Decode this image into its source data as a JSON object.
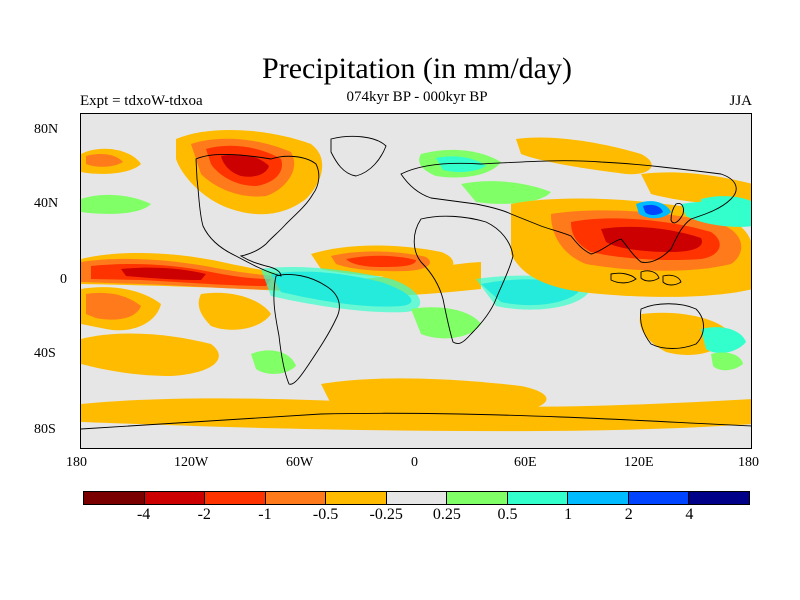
{
  "title": "Precipitation (in mm/day)",
  "subtitle": "074kyr BP - 000kyr BP",
  "left_label": "Expt = tdxoW-tdxoa",
  "right_label": "JJA",
  "lat_ticks": [
    "80N",
    "40N",
    "0",
    "40S",
    "80S"
  ],
  "lon_ticks": [
    "180",
    "120W",
    "60W",
    "0",
    "60E",
    "120E",
    "180"
  ],
  "legend": {
    "colors": [
      "#7a0000",
      "#cc0000",
      "#ff3300",
      "#ff7a1a",
      "#ffbb00",
      "#e6e6e6",
      "#80ff66",
      "#33ffcc",
      "#00bbff",
      "#0044ff",
      "#000088"
    ],
    "labels": [
      "-4",
      "-2",
      "-1",
      "-0.5",
      "-0.25",
      "0.25",
      "0.5",
      "1",
      "2",
      "4"
    ]
  },
  "map_colors": {
    "ocean_background": "#e6e6e6",
    "coastline": "#000000"
  }
}
